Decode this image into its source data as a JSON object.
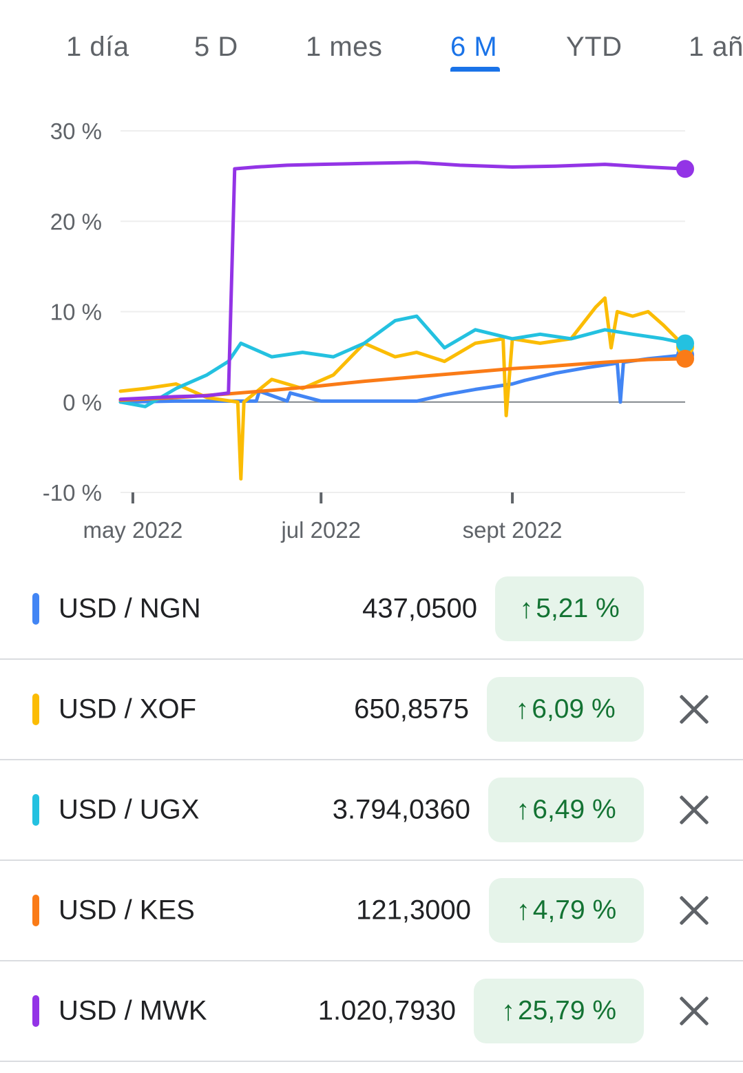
{
  "tabs": [
    {
      "label": "1 día",
      "active": false
    },
    {
      "label": "5 D",
      "active": false
    },
    {
      "label": "1 mes",
      "active": false
    },
    {
      "label": "6 M",
      "active": true
    },
    {
      "label": "YTD",
      "active": false
    },
    {
      "label": "1 añ",
      "active": false
    }
  ],
  "chart_data": {
    "type": "line",
    "xlabel": "",
    "ylabel": "",
    "ylim": [
      -10,
      30
    ],
    "y_ticks": [
      "30 %",
      "20 %",
      "10 %",
      "0 %",
      "-10 %"
    ],
    "y_tick_values": [
      30,
      20,
      10,
      0,
      -10
    ],
    "x_ticks": [
      "may 2022",
      "jul 2022",
      "sept 2022"
    ],
    "grid": true,
    "x_range": [
      "2022-04-27",
      "2022-10-27"
    ],
    "series": [
      {
        "name": "USD / NGN",
        "color": "#4285f4",
        "x": [
          "2022-04-27",
          "2022-05-15",
          "2022-06-01",
          "2022-06-10",
          "2022-06-11",
          "2022-06-20",
          "2022-06-21",
          "2022-07-01",
          "2022-07-20",
          "2022-08-01",
          "2022-08-10",
          "2022-08-20",
          "2022-09-01",
          "2022-09-05",
          "2022-09-15",
          "2022-09-25",
          "2022-10-05",
          "2022-10-06",
          "2022-10-07",
          "2022-10-15",
          "2022-10-27"
        ],
        "values": [
          0.0,
          0.1,
          0.1,
          0.1,
          1.2,
          0.1,
          1.0,
          0.1,
          0.1,
          0.1,
          0.8,
          1.4,
          2.0,
          2.4,
          3.2,
          3.8,
          4.3,
          0.0,
          4.4,
          4.8,
          5.21
        ]
      },
      {
        "name": "USD / XOF",
        "color": "#fbbc04",
        "x": [
          "2022-04-27",
          "2022-05-05",
          "2022-05-15",
          "2022-05-25",
          "2022-06-04",
          "2022-06-05",
          "2022-06-06",
          "2022-06-15",
          "2022-06-25",
          "2022-07-05",
          "2022-07-15",
          "2022-07-25",
          "2022-08-01",
          "2022-08-10",
          "2022-08-20",
          "2022-08-29",
          "2022-08-30",
          "2022-09-01",
          "2022-09-10",
          "2022-09-20",
          "2022-09-28",
          "2022-10-01",
          "2022-10-03",
          "2022-10-05",
          "2022-10-10",
          "2022-10-15",
          "2022-10-20",
          "2022-10-27"
        ],
        "values": [
          1.2,
          1.5,
          2.0,
          0.5,
          0.0,
          -8.5,
          0.0,
          2.5,
          1.5,
          3.0,
          6.5,
          5.0,
          5.5,
          4.5,
          6.5,
          7.0,
          -1.5,
          7.0,
          6.5,
          7.0,
          10.5,
          11.5,
          6.0,
          10.0,
          9.5,
          10.0,
          8.5,
          6.09
        ]
      },
      {
        "name": "USD / UGX",
        "color": "#24c1e0",
        "x": [
          "2022-04-27",
          "2022-05-05",
          "2022-05-15",
          "2022-05-25",
          "2022-06-01",
          "2022-06-05",
          "2022-06-15",
          "2022-06-25",
          "2022-07-05",
          "2022-07-15",
          "2022-07-25",
          "2022-08-01",
          "2022-08-10",
          "2022-08-20",
          "2022-09-01",
          "2022-09-10",
          "2022-09-20",
          "2022-10-01",
          "2022-10-10",
          "2022-10-20",
          "2022-10-27"
        ],
        "values": [
          0.0,
          -0.5,
          1.5,
          3.0,
          4.5,
          6.5,
          5.0,
          5.5,
          5.0,
          6.5,
          9.0,
          9.5,
          6.0,
          8.0,
          7.0,
          7.5,
          7.0,
          8.0,
          7.5,
          7.0,
          6.49
        ]
      },
      {
        "name": "USD / KES",
        "color": "#fa7b17",
        "x": [
          "2022-04-27",
          "2022-05-15",
          "2022-06-01",
          "2022-06-15",
          "2022-07-01",
          "2022-07-15",
          "2022-08-01",
          "2022-08-15",
          "2022-09-01",
          "2022-09-15",
          "2022-10-01",
          "2022-10-15",
          "2022-10-27"
        ],
        "values": [
          0.2,
          0.5,
          0.9,
          1.3,
          1.8,
          2.3,
          2.8,
          3.2,
          3.7,
          4.0,
          4.4,
          4.7,
          4.79
        ]
      },
      {
        "name": "USD / MWK",
        "color": "#9334e6",
        "x": [
          "2022-04-27",
          "2022-05-15",
          "2022-05-25",
          "2022-06-01",
          "2022-06-03",
          "2022-06-10",
          "2022-06-20",
          "2022-07-01",
          "2022-07-15",
          "2022-08-01",
          "2022-08-15",
          "2022-09-01",
          "2022-09-15",
          "2022-10-01",
          "2022-10-15",
          "2022-10-27"
        ],
        "values": [
          0.3,
          0.6,
          0.7,
          1.0,
          25.8,
          26.0,
          26.2,
          26.3,
          26.4,
          26.5,
          26.2,
          26.0,
          26.1,
          26.3,
          26.0,
          25.79
        ]
      }
    ]
  },
  "pairs": [
    {
      "label": "USD / NGN",
      "rate": "437,0500",
      "change_arrow": "↑",
      "change": "5,21 %",
      "color": "#4285f4",
      "closable": false
    },
    {
      "label": "USD / XOF",
      "rate": "650,8575",
      "change_arrow": "↑",
      "change": "6,09 %",
      "color": "#fbbc04",
      "closable": true
    },
    {
      "label": "USD / UGX",
      "rate": "3.794,0360",
      "change_arrow": "↑",
      "change": "6,49 %",
      "color": "#24c1e0",
      "closable": true
    },
    {
      "label": "USD / KES",
      "rate": "121,3000",
      "change_arrow": "↑",
      "change": "4,79 %",
      "color": "#fa7b17",
      "closable": true
    },
    {
      "label": "USD / MWK",
      "rate": "1.020,7930",
      "change_arrow": "↑",
      "change": "25,79 %",
      "color": "#9334e6",
      "closable": true
    }
  ]
}
